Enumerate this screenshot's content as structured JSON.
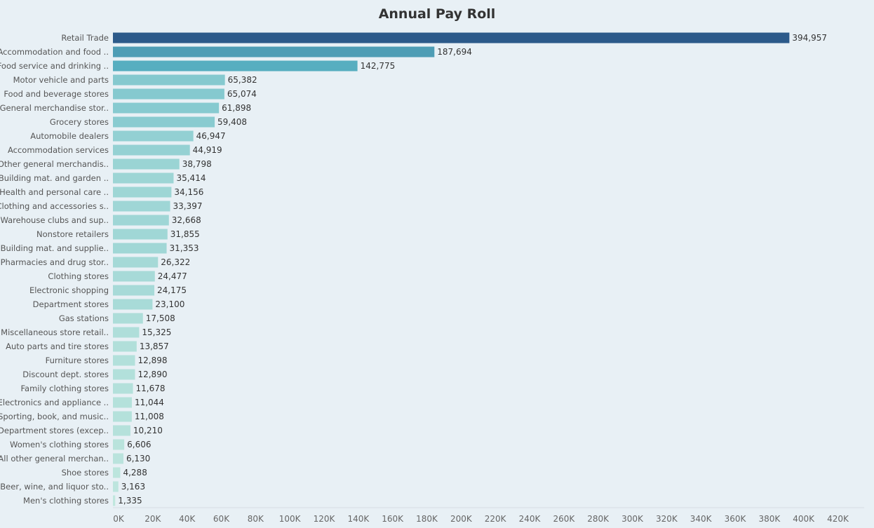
{
  "chart_data": {
    "type": "bar",
    "orientation": "horizontal",
    "title": "Annual Pay Roll",
    "xlabel": "",
    "ylabel": "",
    "xlim": [
      0,
      430000
    ],
    "grid": false,
    "x_ticks": [
      "0K",
      "20K",
      "40K",
      "60K",
      "80K",
      "100K",
      "120K",
      "140K",
      "160K",
      "180K",
      "200K",
      "220K",
      "240K",
      "260K",
      "280K",
      "300K",
      "320K",
      "340K",
      "360K",
      "380K",
      "400K",
      "420K"
    ],
    "x_tick_values": [
      0,
      20000,
      40000,
      60000,
      80000,
      100000,
      120000,
      140000,
      160000,
      180000,
      200000,
      220000,
      240000,
      260000,
      280000,
      300000,
      320000,
      340000,
      360000,
      380000,
      400000,
      420000
    ],
    "categories": [
      "Retail Trade",
      "Accommodation and food ..",
      "Food service and drinking ..",
      "Motor vehicle and parts",
      "Food and beverage stores",
      "General merchandise stor..",
      "Grocery stores",
      "Automobile dealers",
      "Accommodation services",
      "Other general merchandis..",
      "Building mat. and garden ..",
      "Health and personal care ..",
      "Clothing and accessories s..",
      "Warehouse clubs and sup..",
      "Nonstore retailers",
      "Building mat. and supplie..",
      "Pharmacies and drug stor..",
      "Clothing stores",
      "Electronic shopping",
      "Department stores",
      "Gas stations",
      "Miscellaneous store retail..",
      "Auto parts and tire stores",
      "Furniture stores",
      "Discount dept. stores",
      "Family clothing stores",
      "Electronics and appliance ..",
      "Sporting, book, and  music..",
      "Department stores (excep..",
      "Women's clothing stores",
      "All other general merchan..",
      "Shoe stores",
      "Beer, wine, and liquor sto..",
      "Men's clothing stores"
    ],
    "values": [
      394957,
      187694,
      142775,
      65382,
      65074,
      61898,
      59408,
      46947,
      44919,
      38798,
      35414,
      34156,
      33397,
      32668,
      31855,
      31353,
      26322,
      24477,
      24175,
      23100,
      17508,
      15325,
      13857,
      12898,
      12890,
      11678,
      11044,
      11008,
      10210,
      6606,
      6130,
      4288,
      3163,
      1335
    ],
    "value_labels": [
      "394,957",
      "187,694",
      "142,775",
      "65,382",
      "65,074",
      "61,898",
      "59,408",
      "46,947",
      "44,919",
      "38,798",
      "35,414",
      "34,156",
      "33,397",
      "32,668",
      "31,855",
      "31,353",
      "26,322",
      "24,477",
      "24,175",
      "23,100",
      "17,508",
      "15,325",
      "13,857",
      "12,898",
      "12,890",
      "11,678",
      "11,044",
      "11,008",
      "10,210",
      "6,606",
      "6,130",
      "4,288",
      "3,163",
      "1,335"
    ],
    "color_scale": {
      "low": "#c3e8df",
      "mid": "#5ab4c4",
      "high": "#2c5a8a"
    }
  }
}
